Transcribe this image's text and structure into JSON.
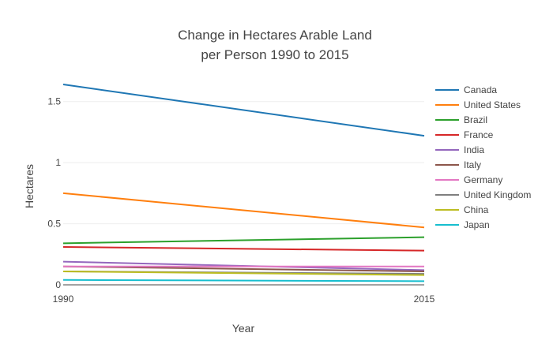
{
  "chart_data": {
    "type": "line",
    "title_lines": [
      "Change in Hectares Arable Land",
      "per Person 1990 to 2015"
    ],
    "xlabel": "Year",
    "ylabel": "Hectares",
    "x": [
      1990,
      2015
    ],
    "x_tick_labels": [
      "1990",
      "2015"
    ],
    "xlim": [
      1990,
      2015
    ],
    "ylim": [
      0,
      1.75
    ],
    "y_ticks": [
      0,
      0.5,
      1,
      1.5
    ],
    "y_tick_labels": [
      "0",
      "0.5",
      "1",
      "1.5"
    ],
    "grid": true,
    "legend_position": "right",
    "series": [
      {
        "name": "Canada",
        "color": "#1f77b4",
        "values": [
          1.64,
          1.22
        ]
      },
      {
        "name": "United States",
        "color": "#ff7f0e",
        "values": [
          0.75,
          0.47
        ]
      },
      {
        "name": "Brazil",
        "color": "#2ca02c",
        "values": [
          0.34,
          0.39
        ]
      },
      {
        "name": "France",
        "color": "#d62728",
        "values": [
          0.31,
          0.28
        ]
      },
      {
        "name": "India",
        "color": "#9467bd",
        "values": [
          0.19,
          0.12
        ]
      },
      {
        "name": "Italy",
        "color": "#8c564b",
        "values": [
          0.15,
          0.11
        ]
      },
      {
        "name": "Germany",
        "color": "#e377c2",
        "values": [
          0.15,
          0.15
        ]
      },
      {
        "name": "United Kingdom",
        "color": "#7f7f7f",
        "values": [
          0.11,
          0.09
        ]
      },
      {
        "name": "China",
        "color": "#bcbd22",
        "values": [
          0.11,
          0.08
        ]
      },
      {
        "name": "Japan",
        "color": "#17becf",
        "values": [
          0.04,
          0.03
        ]
      }
    ]
  }
}
